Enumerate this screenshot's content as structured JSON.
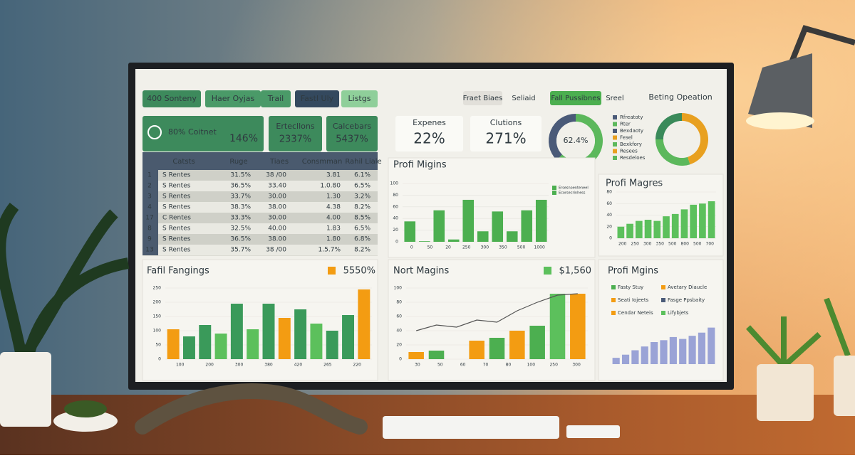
{
  "tabs": [
    "400 Sonteny",
    "Haer Oyjas",
    "Trail",
    "Fastl Uly",
    "Listgs"
  ],
  "top_tabs": [
    "Fraet Biaes",
    "Seliaid",
    "Fall Pussibnes",
    "Sreel"
  ],
  "top_right_title": "Beting Opeation",
  "kpis": [
    {
      "label": "80% Coitnet",
      "value": "146%"
    },
    {
      "label": "Ertecllons",
      "value": "2337%"
    },
    {
      "label": "Calcebars",
      "value": "5437%"
    },
    {
      "label": "Expenes",
      "value": "22%"
    },
    {
      "label": "Clutions",
      "value": "271%"
    }
  ],
  "table": {
    "header": [
      "Catsts",
      "Ruge",
      "Tiaes",
      "Consmman",
      "Rahil Liale"
    ],
    "rows": [
      [
        "1",
        "S Rentes",
        "31.5%",
        "38 /00",
        "3.81",
        "6.1%"
      ],
      [
        "2",
        "S Rentes",
        "36.5%",
        "33.40",
        "1.0.80",
        "6.5%"
      ],
      [
        "3",
        "S Rentes",
        "33.7%",
        "30.00",
        "1.30",
        "3.2%"
      ],
      [
        "4",
        "S Rentes",
        "38.3%",
        "38.00",
        "4.38",
        "8.2%"
      ],
      [
        "17",
        "C Rentes",
        "33.3%",
        "30.00",
        "4.00",
        "8.5%"
      ],
      [
        "8",
        "S Rentes",
        "32.5%",
        "40.00",
        "1.83",
        "6.5%"
      ],
      [
        "9",
        "S Rentes",
        "36.5%",
        "38.00",
        "1.80",
        "6.8%"
      ],
      [
        "13",
        "S Rentes",
        "35.7%",
        "38 /00",
        "1.5.7%",
        "8.2%"
      ]
    ]
  },
  "donut": {
    "values": [
      62.4,
      37.6
    ],
    "value_labels": [
      "62.4%",
      null
    ],
    "colors": [
      "#5cb85c",
      "#4a5a78"
    ],
    "legend": [
      "Rfreatoty",
      "Rter",
      "Bexdaoty",
      "Fesel",
      "Bexkfory",
      "Resees",
      "Resdeloes"
    ],
    "legend_colors": [
      "#4a5a78",
      "#5cb85c",
      "#4a5a78",
      "#e8a020",
      "#5cb85c",
      "#e8a020",
      "#5cb85c"
    ]
  },
  "donut2": {
    "values": [
      45,
      30,
      25
    ],
    "colors": [
      "#e8a020",
      "#5cb85c",
      "#3a8a5a"
    ]
  },
  "charts": [
    {
      "type": "bar",
      "title": "Profi Migins",
      "ylim": [
        0,
        100
      ],
      "yticks": [
        0,
        20,
        40,
        60,
        80,
        100
      ],
      "values": [
        35,
        1,
        54,
        4,
        72,
        18,
        52,
        18,
        54,
        72
      ],
      "colors": [
        "#4caf50",
        "#4caf50",
        "#4caf50",
        "#4caf50",
        "#4caf50",
        "#4caf50",
        "#4caf50",
        "#4caf50",
        "#4caf50",
        "#4caf50"
      ],
      "axis_labels": [
        "0",
        "50",
        "20",
        "250",
        "300",
        "350",
        "500",
        "1000"
      ],
      "legend": [
        "Ersesnoenteneel",
        "Ecorsecrinhess"
      ],
      "legend_colors": [
        "#4caf50",
        "#4caf50"
      ]
    },
    {
      "type": "bar",
      "title": "Profi Magres",
      "ylim": [
        0,
        80
      ],
      "yticks": [
        0,
        20,
        40,
        60,
        80
      ],
      "values": [
        20,
        25,
        30,
        32,
        30,
        38,
        42,
        50,
        58,
        60,
        64
      ],
      "colors": [
        "#5cc05c",
        "#5cc05c",
        "#5cc05c",
        "#5cc05c",
        "#5cc05c",
        "#5cc05c",
        "#5cc05c",
        "#5cc05c",
        "#5cc05c",
        "#5cc05c",
        "#5cc05c"
      ],
      "axis_labels": [
        "200",
        "250",
        "300",
        "350",
        "500",
        "800",
        "500",
        "700"
      ]
    },
    {
      "type": "bar",
      "title": "Fafil Fangings",
      "badge": "5550%",
      "badge_color": "#f39c12",
      "ylim": [
        0,
        250
      ],
      "yticks": [
        0,
        50,
        100,
        150,
        200,
        250
      ],
      "values": [
        105,
        80,
        120,
        90,
        195,
        105,
        195,
        145,
        175,
        125,
        100,
        155,
        245
      ],
      "colors": [
        "#f39c12",
        "#3a9a5a",
        "#3a9a5a",
        "#5cc05c",
        "#3a9a5a",
        "#5cc05c",
        "#3a9a5a",
        "#f39c12",
        "#3a9a5a",
        "#5cc05c",
        "#3a9a5a",
        "#3a9a5a",
        "#f39c12"
      ],
      "axis_labels": [
        "100",
        "200",
        "300",
        "380",
        "420",
        "265",
        "220"
      ]
    },
    {
      "type": "bar",
      "title": "Nort Magins",
      "badge": "$1,560",
      "badge_color": "#5cc05c",
      "ylim": [
        0,
        100
      ],
      "yticks": [
        0,
        20,
        40,
        60,
        80,
        100
      ],
      "values": [
        10,
        12,
        0,
        26,
        30,
        40,
        47,
        92,
        92
      ],
      "colors": [
        "#f39c12",
        "#4caf50",
        "#4caf50",
        "#f39c12",
        "#4caf50",
        "#f39c12",
        "#4caf50",
        "#5cc05c",
        "#f39c12"
      ],
      "line": [
        40,
        48,
        45,
        55,
        52,
        68,
        80,
        90,
        92
      ],
      "axis_labels": [
        "30",
        "50",
        "60",
        "70",
        "80",
        "100",
        "250",
        "300"
      ]
    },
    {
      "type": "bar",
      "title": "Profi Mgins",
      "ylim": [
        0,
        70
      ],
      "values": [
        10,
        15,
        22,
        28,
        35,
        38,
        43,
        40,
        45,
        50,
        58
      ],
      "colors": [
        "#9aa3d6",
        "#9aa3d6",
        "#9aa3d6",
        "#9aa3d6",
        "#9aa3d6",
        "#9aa3d6",
        "#9aa3d6",
        "#9aa3d6",
        "#9aa3d6",
        "#9aa3d6",
        "#9aa3d6"
      ],
      "legend": [
        "Fasty Stuy",
        "Avetary Diaucle",
        "Seati Iojeets",
        "Fasge Ppsbaity",
        "Cendar Neteis",
        "Lifybjets"
      ],
      "legend_colors": [
        "#4caf50",
        "#f39c12",
        "#f39c12",
        "#4a5a78",
        "#f39c12",
        "#5cc05c"
      ]
    }
  ]
}
